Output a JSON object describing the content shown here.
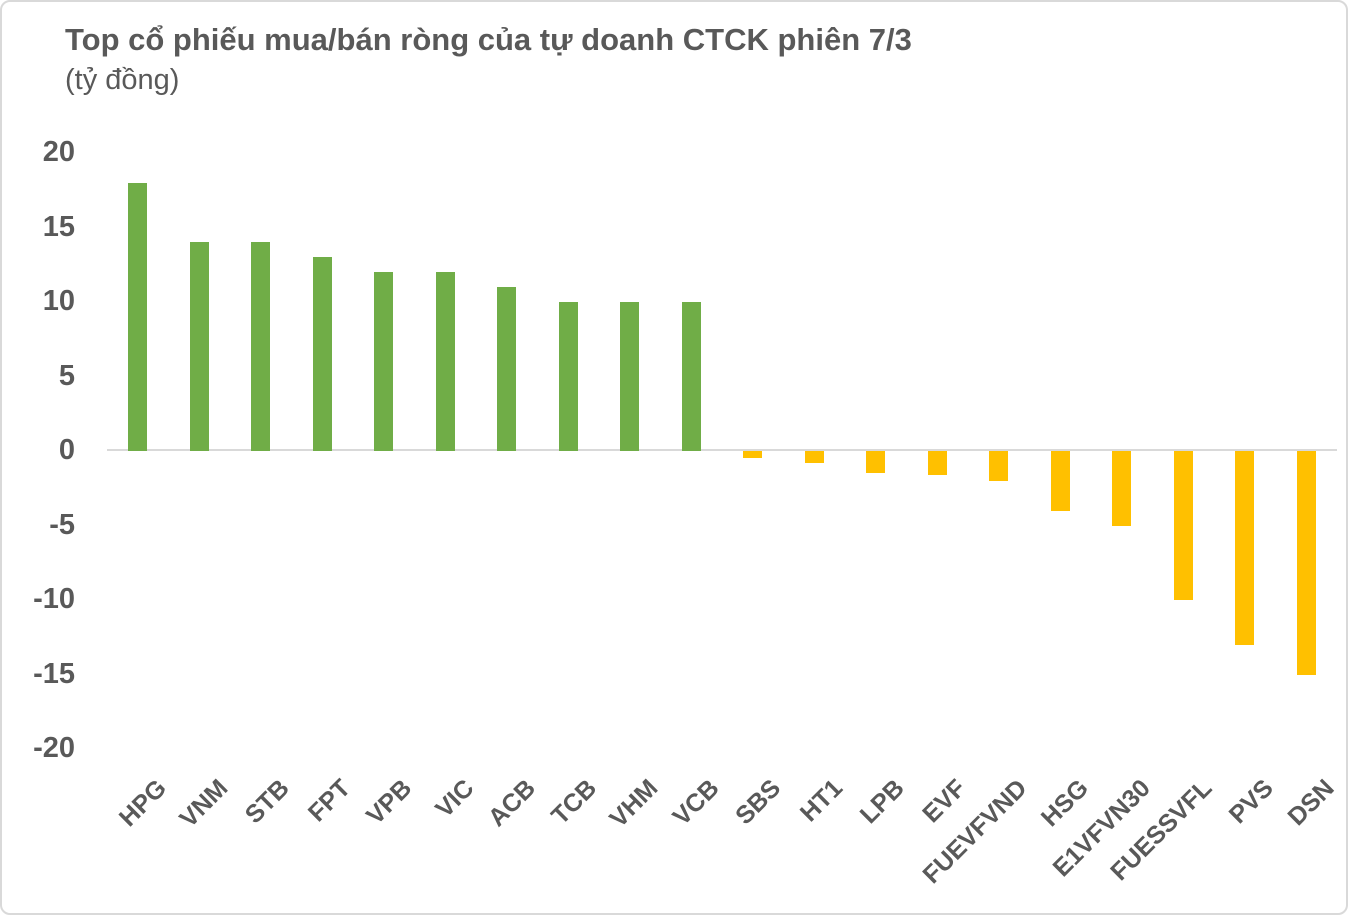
{
  "chart_data": {
    "type": "bar",
    "title": "Top cổ phiếu mua/bán ròng của tự doanh CTCK phiên 7/3",
    "subtitle": "(tỷ đồng)",
    "categories": [
      "HPG",
      "VNM",
      "STB",
      "FPT",
      "VPB",
      "VIC",
      "ACB",
      "TCB",
      "VHM",
      "VCB",
      "SBS",
      "HT1",
      "LPB",
      "EVF",
      "FUEVFVND",
      "HSG",
      "E1VFVN30",
      "FUESSVFL",
      "PVS",
      "DSN"
    ],
    "values": [
      18,
      14,
      14,
      13,
      12,
      12,
      11,
      10,
      10,
      10,
      -0.5,
      -0.8,
      -1.5,
      -1.6,
      -2,
      -4,
      -5,
      -10,
      -13,
      -15
    ],
    "xlabel": "",
    "ylabel": "",
    "yticks": [
      20,
      15,
      10,
      5,
      0,
      -5,
      -10,
      -15,
      -20
    ],
    "ylim": [
      -20,
      20
    ],
    "grid": false,
    "legend": "none",
    "x_tick_rotation_deg": -45,
    "colors": {
      "bar_positive": "#70AD47",
      "bar_negative": "#FFC000",
      "axis_text": "#595959",
      "zero_line": "#D9D9D9",
      "frame_border": "#D9D9D9",
      "background": "#FFFFFF"
    }
  }
}
